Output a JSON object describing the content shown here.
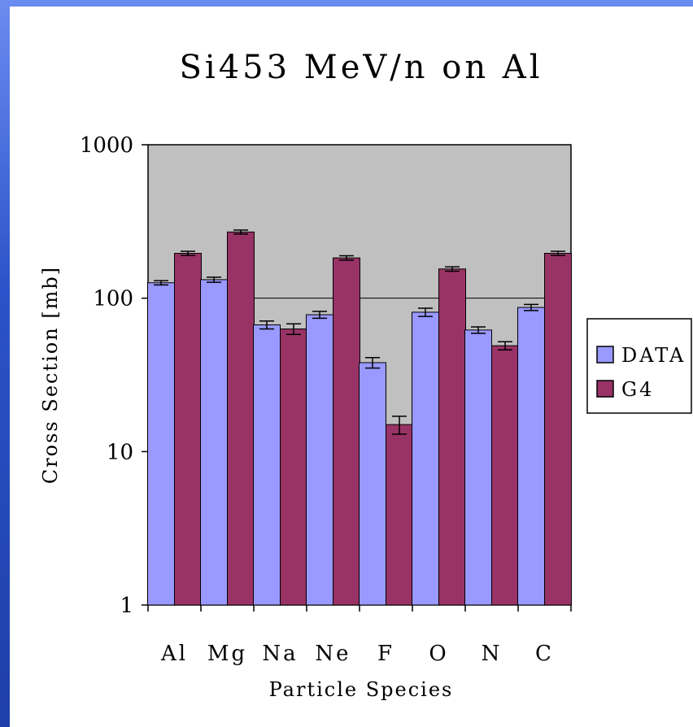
{
  "chart_data": {
    "type": "bar",
    "title": "Si453 MeV/n on Al",
    "xlabel": "Particle Species",
    "ylabel": "Cross Section [mb]",
    "yscale": "log",
    "ylim": [
      1,
      1000
    ],
    "yticks": [
      "1000",
      "100",
      "10",
      "1"
    ],
    "ytick_values": [
      1000,
      100,
      10,
      1
    ],
    "categories": [
      "Al",
      "Mg",
      "Na",
      "Ne",
      "F",
      "O",
      "N",
      "C"
    ],
    "grid": true,
    "legend_position": "right",
    "series": [
      {
        "name": "DATA",
        "color": "#9999ff",
        "values": [
          126,
          132,
          67,
          78,
          38,
          81,
          62,
          87
        ],
        "errors": [
          4,
          5,
          4,
          4,
          3,
          5,
          3,
          4
        ]
      },
      {
        "name": "G4",
        "color": "#993366",
        "values": [
          196,
          270,
          63,
          183,
          15,
          155,
          49,
          196
        ],
        "errors": [
          6,
          8,
          5,
          6,
          2,
          5,
          3,
          6
        ]
      }
    ]
  }
}
